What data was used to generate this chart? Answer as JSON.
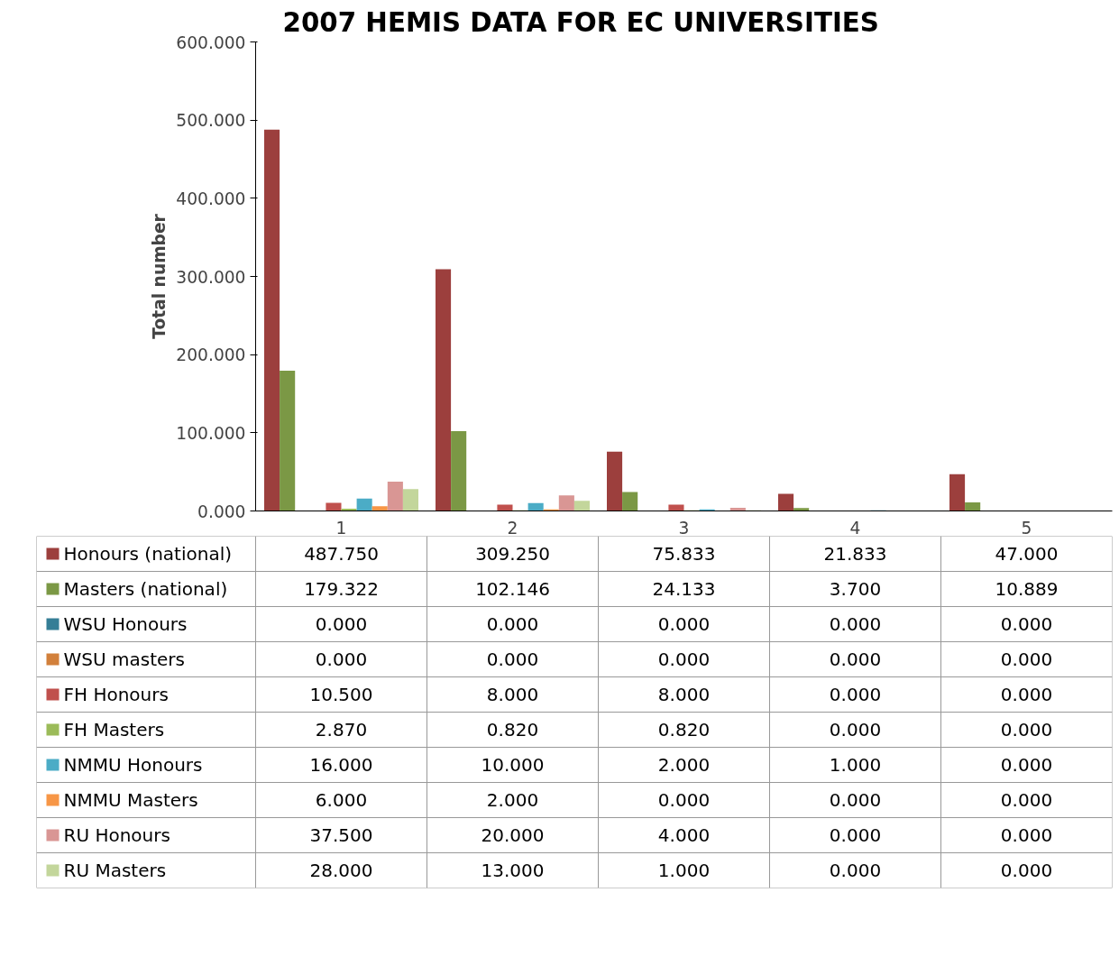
{
  "chart_data": {
    "type": "bar",
    "title": "2007 HEMIS DATA FOR EC UNIVERSITIES",
    "ylabel": "Total number",
    "categories": [
      "1",
      "2",
      "3",
      "4",
      "5"
    ],
    "ylim": [
      0,
      600
    ],
    "yticks": [
      {
        "value": 0,
        "label": "0.000"
      },
      {
        "value": 100,
        "label": "100.000"
      },
      {
        "value": 200,
        "label": "200.000"
      },
      {
        "value": 300,
        "label": "300.000"
      },
      {
        "value": 400,
        "label": "400.000"
      },
      {
        "value": 500,
        "label": "500.000"
      },
      {
        "value": 600,
        "label": "600.000"
      }
    ],
    "grid": false,
    "legend": "bottom",
    "series": [
      {
        "name": "Honours (national)",
        "color": "#9c3f3d",
        "values": [
          487.75,
          309.25,
          75.833,
          21.833,
          47.0
        ],
        "value_labels": [
          "487.750",
          "309.250",
          "75.833",
          "21.833",
          "47.000"
        ]
      },
      {
        "name": "Masters (national)",
        "color": "#7b9845",
        "values": [
          179.322,
          102.146,
          24.133,
          3.7,
          10.889
        ],
        "value_labels": [
          "179.322",
          "102.146",
          "24.133",
          "3.700",
          "10.889"
        ]
      },
      {
        "name": "WSU Honours",
        "color": "#357e96",
        "values": [
          0,
          0,
          0,
          0,
          0
        ],
        "value_labels": [
          "0.000",
          "0.000",
          "0.000",
          "0.000",
          "0.000"
        ]
      },
      {
        "name": "WSU masters",
        "color": "#d2803b",
        "values": [
          0,
          0,
          0,
          0,
          0
        ],
        "value_labels": [
          "0.000",
          "0.000",
          "0.000",
          "0.000",
          "0.000"
        ]
      },
      {
        "name": "FH Honours",
        "color": "#c0504d",
        "values": [
          10.5,
          8.0,
          8.0,
          0,
          0
        ],
        "value_labels": [
          "10.500",
          "8.000",
          "8.000",
          "0.000",
          "0.000"
        ]
      },
      {
        "name": "FH Masters",
        "color": "#9bbb59",
        "values": [
          2.87,
          0.82,
          0.82,
          0,
          0
        ],
        "value_labels": [
          "2.870",
          "0.820",
          "0.820",
          "0.000",
          "0.000"
        ]
      },
      {
        "name": "NMMU Honours",
        "color": "#4bacc6",
        "values": [
          16.0,
          10.0,
          2.0,
          1.0,
          0
        ],
        "value_labels": [
          "16.000",
          "10.000",
          "2.000",
          "1.000",
          "0.000"
        ]
      },
      {
        "name": "NMMU Masters",
        "color": "#f79646",
        "values": [
          6.0,
          2.0,
          0,
          0,
          0
        ],
        "value_labels": [
          "6.000",
          "2.000",
          "0.000",
          "0.000",
          "0.000"
        ]
      },
      {
        "name": "RU Honours",
        "color": "#d99694",
        "values": [
          37.5,
          20.0,
          4.0,
          0,
          0
        ],
        "value_labels": [
          "37.500",
          "20.000",
          "4.000",
          "0.000",
          "0.000"
        ]
      },
      {
        "name": "RU Masters",
        "color": "#c3d69b",
        "values": [
          28.0,
          13.0,
          1.0,
          0,
          0
        ],
        "value_labels": [
          "28.000",
          "13.000",
          "1.000",
          "0.000",
          "0.000"
        ]
      }
    ]
  }
}
